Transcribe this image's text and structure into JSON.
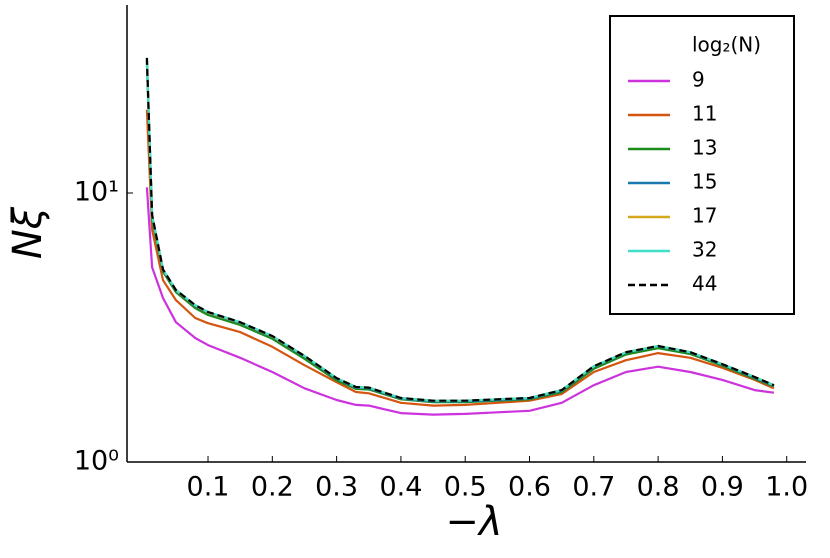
{
  "chart_data": {
    "type": "line",
    "xlabel": "−λ",
    "ylabel": "Nξ",
    "x": [
      0.005,
      0.013,
      0.03,
      0.05,
      0.08,
      0.1,
      0.15,
      0.2,
      0.25,
      0.3,
      0.33,
      0.35,
      0.4,
      0.45,
      0.5,
      0.55,
      0.6,
      0.65,
      0.7,
      0.75,
      0.8,
      0.85,
      0.9,
      0.95,
      0.98
    ],
    "series": [
      {
        "name": "9",
        "color": "#cc33dd",
        "values": [
          10.5,
          5.3,
          4.07,
          3.31,
          2.89,
          2.72,
          2.44,
          2.16,
          1.88,
          1.7,
          1.63,
          1.62,
          1.52,
          1.5,
          1.51,
          1.53,
          1.55,
          1.66,
          1.93,
          2.16,
          2.26,
          2.16,
          2.02,
          1.85,
          1.81
        ]
      },
      {
        "name": "11",
        "color": "#d45510",
        "values": [
          20.4,
          7.3,
          4.74,
          4.0,
          3.43,
          3.28,
          3.04,
          2.68,
          2.29,
          1.98,
          1.82,
          1.8,
          1.66,
          1.62,
          1.63,
          1.66,
          1.69,
          1.79,
          2.16,
          2.39,
          2.54,
          2.44,
          2.24,
          2.02,
          1.88
        ]
      },
      {
        "name": "13",
        "color": "#1a8c1a",
        "values": [
          30.5,
          8.0,
          5.1,
          4.28,
          3.73,
          3.52,
          3.23,
          2.87,
          2.42,
          2.01,
          1.87,
          1.86,
          1.71,
          1.67,
          1.67,
          1.69,
          1.71,
          1.82,
          2.22,
          2.51,
          2.65,
          2.52,
          2.28,
          2.04,
          1.91
        ]
      },
      {
        "name": "15",
        "color": "#1a78b0",
        "values": [
          31.4,
          8.2,
          5.18,
          4.34,
          3.8,
          3.59,
          3.29,
          2.92,
          2.47,
          2.04,
          1.89,
          1.88,
          1.72,
          1.68,
          1.68,
          1.7,
          1.72,
          1.84,
          2.26,
          2.55,
          2.69,
          2.55,
          2.3,
          2.06,
          1.92
        ]
      },
      {
        "name": "17",
        "color": "#d4a81c",
        "values": [
          31.6,
          8.25,
          5.19,
          4.35,
          3.82,
          3.6,
          3.3,
          2.93,
          2.48,
          2.05,
          1.9,
          1.89,
          1.73,
          1.69,
          1.69,
          1.71,
          1.73,
          1.85,
          2.27,
          2.56,
          2.7,
          2.56,
          2.31,
          2.07,
          1.93
        ]
      },
      {
        "name": "32",
        "color": "#40e0c8",
        "values": [
          31.7,
          8.3,
          5.2,
          4.36,
          3.83,
          3.61,
          3.31,
          2.94,
          2.48,
          2.05,
          1.9,
          1.89,
          1.73,
          1.69,
          1.69,
          1.71,
          1.73,
          1.85,
          2.27,
          2.56,
          2.7,
          2.56,
          2.31,
          2.07,
          1.93
        ]
      },
      {
        "name": "44",
        "color": "#000000",
        "linestyle": "dashed",
        "values": [
          31.8,
          8.3,
          5.2,
          4.36,
          3.83,
          3.61,
          3.31,
          2.94,
          2.48,
          2.05,
          1.9,
          1.89,
          1.73,
          1.69,
          1.69,
          1.71,
          1.73,
          1.85,
          2.27,
          2.56,
          2.7,
          2.56,
          2.31,
          2.07,
          1.93
        ]
      }
    ],
    "legend_title": "log₂(N)",
    "legend": "upper right",
    "xlim": [
      -0.026,
      1.03
    ],
    "xticks": [
      0.1,
      0.2,
      0.3,
      0.4,
      0.5,
      0.6,
      0.7,
      0.8,
      0.9,
      {
        "value": 1.0,
        "label": "1.0"
      }
    ],
    "ylim": [
      1,
      50
    ],
    "yscale": "log",
    "yticks": [
      {
        "value": 1,
        "label": "10⁰"
      },
      {
        "value": 10,
        "label": "10¹"
      }
    ],
    "grid": false
  }
}
